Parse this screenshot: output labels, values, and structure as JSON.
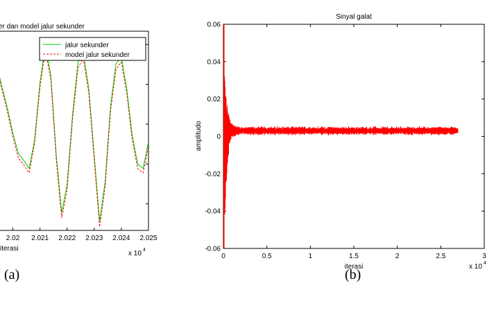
{
  "chart_data": [
    {
      "type": "line",
      "panel_label": "(a)",
      "title": "er dan model jalur sekunder",
      "xlabel": "iterasi",
      "ylabel": "",
      "x_multiplier": "x 10",
      "x_multiplier_exp": "4",
      "xlim": [
        2.0195,
        2.025
      ],
      "ylim": [
        -1.2,
        1.05
      ],
      "xticks": [
        2.02,
        2.021,
        2.022,
        2.023,
        2.024,
        2.025
      ],
      "xtick_labels": [
        "2.02",
        "2.021",
        "2.022",
        "2.023",
        "2.024",
        "2.025"
      ],
      "yticks": [
        -0.9,
        -0.45,
        0,
        0.45,
        0.9
      ],
      "legend_position": "top-right",
      "series": [
        {
          "name": "jalur sekunder",
          "color": "#00cc00",
          "style": "solid",
          "x": [
            2.0195,
            2.0196,
            2.0198,
            2.02,
            2.0202,
            2.0204,
            2.0206,
            2.0208,
            2.021,
            2.0212,
            2.0214,
            2.0216,
            2.0218,
            2.022,
            2.0222,
            2.0224,
            2.0226,
            2.0228,
            2.023,
            2.0232,
            2.0234,
            2.0236,
            2.0238,
            2.024,
            2.0242,
            2.0244,
            2.0246,
            2.0248,
            2.025
          ],
          "y": [
            0.55,
            0.42,
            0.18,
            -0.1,
            -0.33,
            -0.41,
            -0.5,
            -0.18,
            0.47,
            0.9,
            0.55,
            -0.35,
            -1.0,
            -0.68,
            0.1,
            0.7,
            0.8,
            0.4,
            -0.35,
            -1.1,
            -0.65,
            0.2,
            0.68,
            0.76,
            0.4,
            -0.12,
            -0.45,
            -0.5,
            -0.2
          ]
        },
        {
          "name": "model jalur sekunder",
          "color": "#ff0000",
          "style": "dashed",
          "x": [
            2.0195,
            2.0196,
            2.0198,
            2.02,
            2.0202,
            2.0204,
            2.0206,
            2.0208,
            2.021,
            2.0212,
            2.0214,
            2.0216,
            2.0218,
            2.022,
            2.0222,
            2.0224,
            2.0226,
            2.0228,
            2.023,
            2.0232,
            2.0234,
            2.0236,
            2.0238,
            2.024,
            2.0242,
            2.0244,
            2.0246,
            2.0248,
            2.025
          ],
          "y": [
            0.52,
            0.39,
            0.14,
            -0.14,
            -0.38,
            -0.46,
            -0.55,
            -0.22,
            0.42,
            0.84,
            0.5,
            -0.4,
            -1.06,
            -0.74,
            0.05,
            0.64,
            0.74,
            0.35,
            -0.4,
            -1.16,
            -0.71,
            0.15,
            0.62,
            0.7,
            0.35,
            -0.17,
            -0.5,
            -0.55,
            -0.25
          ]
        }
      ]
    },
    {
      "type": "line",
      "panel_label": "(b)",
      "title": "Sinyal galat",
      "xlabel": "iterasi",
      "ylabel": "amplitudo",
      "x_multiplier": "x 10",
      "x_multiplier_exp": "4",
      "xlim": [
        0,
        3
      ],
      "ylim": [
        -0.06,
        0.06
      ],
      "xticks": [
        0,
        0.5,
        1,
        1.5,
        2,
        2.5,
        3
      ],
      "xtick_labels": [
        "0",
        "0.5",
        "1",
        "1.5",
        "2",
        "2.5",
        "3"
      ],
      "yticks": [
        -0.06,
        -0.04,
        -0.02,
        0,
        0.02,
        0.04,
        0.06
      ],
      "ytick_labels": [
        "-0.06",
        "-0.04",
        "-0.02",
        "0",
        "0.02",
        "0.04",
        "0.06"
      ],
      "series": [
        {
          "color": "#ff0000",
          "x_end": 2.7,
          "steady_level": 0.003,
          "steady_band": 0.0018,
          "initial_peak": 0.06,
          "initial_trough": -0.06
        }
      ]
    }
  ]
}
